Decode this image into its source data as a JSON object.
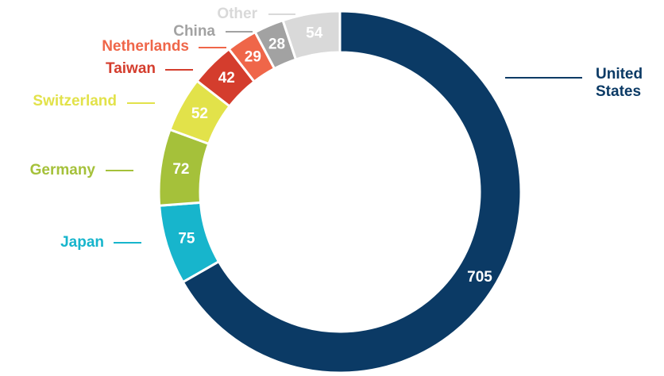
{
  "chart_data": {
    "type": "pie",
    "categories": [
      "United States",
      "Japan",
      "Germany",
      "Switzerland",
      "Taiwan",
      "Netherlands",
      "China",
      "Other"
    ],
    "values": [
      705,
      75,
      72,
      52,
      42,
      29,
      28,
      54
    ],
    "colors": [
      "#0b3a65",
      "#17b5cc",
      "#a5c13a",
      "#e2e24a",
      "#d43d2d",
      "#ef6649",
      "#a2a2a2",
      "#d9d9d9"
    ],
    "donut": true
  }
}
